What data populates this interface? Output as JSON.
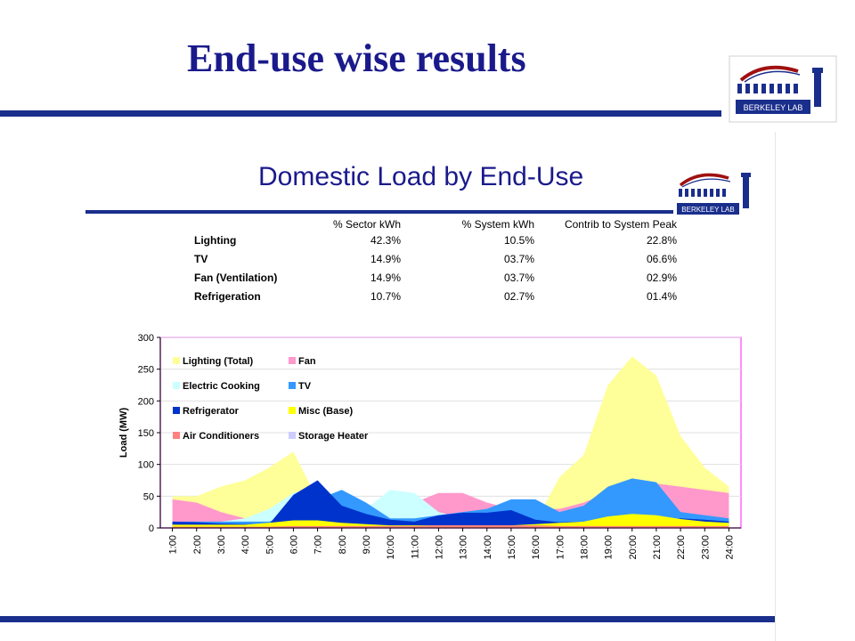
{
  "slide": {
    "title": "End-use wise results"
  },
  "figure": {
    "title": "Domestic Load by End-Use",
    "logo_text": "BERKELEY LAB"
  },
  "table": {
    "headers": [
      "",
      "% Sector kWh",
      "% System  kWh",
      "Contrib to System  Peak"
    ],
    "rows": [
      [
        "Lighting",
        "42.3%",
        "10.5%",
        "22.8%"
      ],
      [
        "TV",
        "14.9%",
        "03.7%",
        "06.6%"
      ],
      [
        "Fan (Ventilation)",
        "14.9%",
        "03.7%",
        "02.9%"
      ],
      [
        "Refrigeration",
        "10.7%",
        "02.7%",
        "01.4%"
      ]
    ]
  },
  "chart_data": {
    "type": "area",
    "title": "",
    "xlabel": "",
    "ylabel": "Load (MW)",
    "ylim": [
      0,
      300
    ],
    "yticks": [
      0,
      50,
      100,
      150,
      200,
      250,
      300
    ],
    "grid": "horizontal",
    "legend_placement": "top-left",
    "categories": [
      "1:00",
      "2:00",
      "3:00",
      "4:00",
      "5:00",
      "6:00",
      "7:00",
      "8:00",
      "9:00",
      "10:00",
      "11:00",
      "12:00",
      "13:00",
      "14:00",
      "15:00",
      "16:00",
      "17:00",
      "18:00",
      "19:00",
      "20:00",
      "21:00",
      "22:00",
      "23:00",
      "24:00"
    ],
    "series": [
      {
        "name": "Lighting (Total)",
        "color": "#ffff99",
        "values": [
          50,
          50,
          65,
          75,
          95,
          120,
          45,
          45,
          30,
          15,
          15,
          10,
          10,
          10,
          10,
          10,
          80,
          115,
          225,
          270,
          240,
          145,
          95,
          65
        ]
      },
      {
        "name": "Fan",
        "color": "#ff99cc",
        "values": [
          45,
          40,
          25,
          15,
          15,
          20,
          25,
          30,
          25,
          20,
          40,
          55,
          55,
          40,
          30,
          30,
          30,
          40,
          55,
          65,
          70,
          65,
          60,
          55
        ]
      },
      {
        "name": "Electric Cooking",
        "color": "#ccffff",
        "values": [
          5,
          5,
          10,
          15,
          30,
          55,
          65,
          40,
          30,
          60,
          55,
          25,
          15,
          15,
          10,
          10,
          15,
          20,
          20,
          20,
          20,
          15,
          15,
          15
        ]
      },
      {
        "name": "TV",
        "color": "#3399ff",
        "values": [
          10,
          10,
          10,
          10,
          10,
          25,
          45,
          60,
          40,
          15,
          15,
          20,
          25,
          30,
          45,
          45,
          25,
          35,
          65,
          78,
          72,
          25,
          20,
          15
        ]
      },
      {
        "name": "Refrigerator",
        "color": "#0033cc",
        "values": [
          10,
          9,
          7,
          6,
          6,
          52,
          75,
          35,
          22,
          13,
          10,
          20,
          24,
          24,
          28,
          13,
          9,
          10,
          12,
          13,
          13,
          15,
          13,
          10
        ]
      },
      {
        "name": "Misc (Base)",
        "color": "#ffff00",
        "values": [
          5,
          5,
          5,
          5,
          8,
          12,
          12,
          8,
          6,
          4,
          4,
          4,
          4,
          4,
          4,
          6,
          8,
          10,
          18,
          22,
          20,
          14,
          10,
          8
        ]
      },
      {
        "name": "Air Conditioners",
        "color": "#ff8080",
        "values": [
          2,
          2,
          2,
          2,
          2,
          3,
          3,
          3,
          3,
          3,
          3,
          4,
          4,
          4,
          4,
          4,
          3,
          3,
          3,
          3,
          3,
          3,
          3,
          3
        ]
      },
      {
        "name": "Storage Heater",
        "color": "#ccccff",
        "values": [
          0,
          0,
          0,
          0,
          0,
          0,
          0,
          0,
          0,
          0,
          0,
          0,
          0,
          0,
          0,
          0,
          0,
          0,
          0,
          0,
          0,
          0,
          0,
          0
        ]
      }
    ]
  }
}
